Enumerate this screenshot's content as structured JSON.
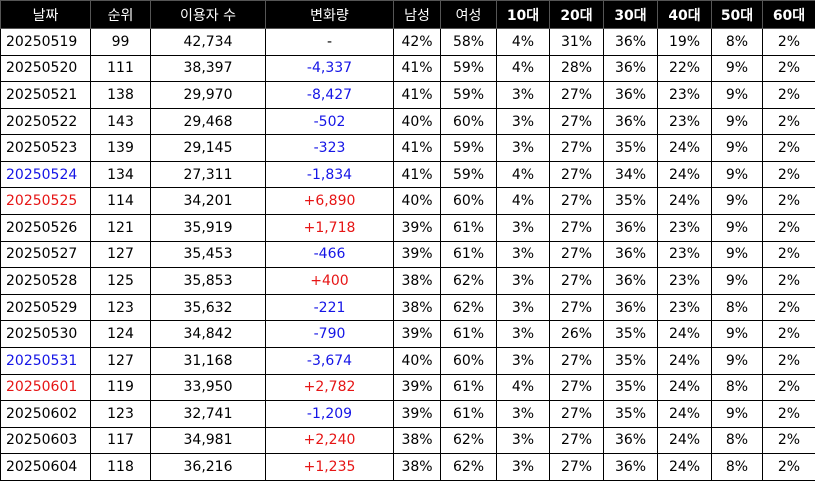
{
  "table": {
    "header": [
      "날짜",
      "순위",
      "이용자 수",
      "변화량",
      "남성",
      "여성",
      "10대",
      "20대",
      "30대",
      "40대",
      "50대",
      "60대"
    ],
    "rows": [
      [
        "20250519",
        "99",
        "42,734",
        "-",
        "42%",
        "58%",
        "4%",
        "31%",
        "36%",
        "19%",
        "8%",
        "2%"
      ],
      [
        "20250520",
        "111",
        "38,397",
        "-4,337",
        "41%",
        "59%",
        "4%",
        "28%",
        "36%",
        "22%",
        "9%",
        "2%"
      ],
      [
        "20250521",
        "138",
        "29,970",
        "-8,427",
        "41%",
        "59%",
        "3%",
        "27%",
        "36%",
        "23%",
        "9%",
        "2%"
      ],
      [
        "20250522",
        "143",
        "29,468",
        "-502",
        "40%",
        "60%",
        "3%",
        "27%",
        "36%",
        "23%",
        "9%",
        "2%"
      ],
      [
        "20250523",
        "139",
        "29,145",
        "-323",
        "41%",
        "59%",
        "3%",
        "27%",
        "35%",
        "24%",
        "9%",
        "2%"
      ],
      [
        "20250524",
        "134",
        "27,311",
        "-1,834",
        "41%",
        "59%",
        "4%",
        "27%",
        "34%",
        "24%",
        "9%",
        "2%"
      ],
      [
        "20250525",
        "114",
        "34,201",
        "+6,890",
        "40%",
        "60%",
        "4%",
        "27%",
        "35%",
        "24%",
        "9%",
        "2%"
      ],
      [
        "20250526",
        "121",
        "35,919",
        "+1,718",
        "39%",
        "61%",
        "3%",
        "27%",
        "36%",
        "23%",
        "9%",
        "2%"
      ],
      [
        "20250527",
        "127",
        "35,453",
        "-466",
        "39%",
        "61%",
        "3%",
        "27%",
        "36%",
        "23%",
        "9%",
        "2%"
      ],
      [
        "20250528",
        "125",
        "35,853",
        "+400",
        "38%",
        "62%",
        "3%",
        "27%",
        "36%",
        "23%",
        "9%",
        "2%"
      ],
      [
        "20250529",
        "123",
        "35,632",
        "-221",
        "38%",
        "62%",
        "3%",
        "27%",
        "36%",
        "23%",
        "8%",
        "2%"
      ],
      [
        "20250530",
        "124",
        "34,842",
        "-790",
        "39%",
        "61%",
        "3%",
        "26%",
        "35%",
        "24%",
        "9%",
        "2%"
      ],
      [
        "20250531",
        "127",
        "31,168",
        "-3,674",
        "40%",
        "60%",
        "3%",
        "27%",
        "35%",
        "24%",
        "9%",
        "2%"
      ],
      [
        "20250601",
        "119",
        "33,950",
        "+2,782",
        "39%",
        "61%",
        "4%",
        "27%",
        "35%",
        "24%",
        "8%",
        "2%"
      ],
      [
        "20250602",
        "123",
        "32,741",
        "-1,209",
        "39%",
        "61%",
        "3%",
        "27%",
        "35%",
        "24%",
        "9%",
        "2%"
      ],
      [
        "20250603",
        "117",
        "34,981",
        "+2,240",
        "38%",
        "62%",
        "3%",
        "27%",
        "36%",
        "24%",
        "8%",
        "2%"
      ],
      [
        "20250604",
        "118",
        "36,216",
        "+1,235",
        "38%",
        "62%",
        "3%",
        "27%",
        "36%",
        "24%",
        "8%",
        "2%"
      ]
    ],
    "date_colors": [
      "#000",
      "#000",
      "#000",
      "#000",
      "#000",
      "#1515e6",
      "#e61515",
      "#000",
      "#000",
      "#000",
      "#000",
      "#000",
      "#1515e6",
      "#e61515",
      "#000",
      "#000",
      "#000"
    ],
    "change_colors": [
      "#000",
      "#1515e6",
      "#1515e6",
      "#1515e6",
      "#1515e6",
      "#1515e6",
      "#e61515",
      "#e61515",
      "#1515e6",
      "#e61515",
      "#1515e6",
      "#1515e6",
      "#1515e6",
      "#e61515",
      "#1515e6",
      "#e61515",
      "#e61515"
    ]
  }
}
